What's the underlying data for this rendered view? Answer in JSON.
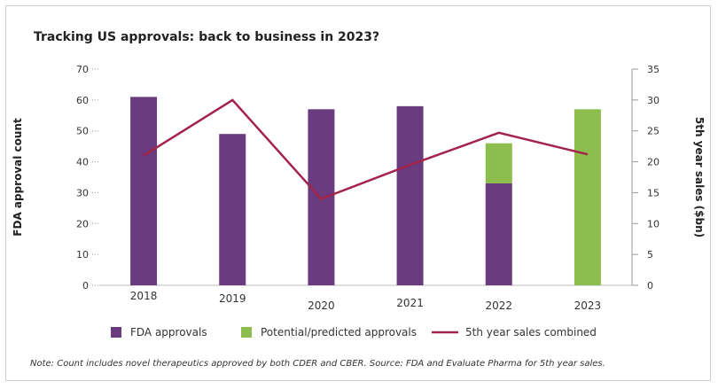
{
  "chart_data": {
    "type": "bar",
    "title": "Tracking US approvals: back to business in 2023?",
    "categories": [
      "2018",
      "2019",
      "2020",
      "2021",
      "2022",
      "2023"
    ],
    "ylabel": "FDA approval count",
    "y2label": "5th year sales ($bn)",
    "ylim": [
      0,
      70
    ],
    "y2lim": [
      0,
      35
    ],
    "yticks": [
      0,
      10,
      20,
      30,
      40,
      50,
      60,
      70
    ],
    "y2ticks": [
      0,
      5,
      10,
      15,
      20,
      25,
      30,
      35
    ],
    "stacked": true,
    "series": [
      {
        "name": "FDA approvals",
        "type": "bar",
        "axis": "left",
        "color": "#6a3b7e",
        "values": [
          61,
          49,
          57,
          58,
          33,
          0
        ]
      },
      {
        "name": "Potential/predicted approvals",
        "type": "bar",
        "axis": "left",
        "color": "#8dbd4f",
        "values": [
          0,
          0,
          0,
          0,
          13,
          57
        ]
      },
      {
        "name": "5th year sales combined",
        "type": "line",
        "axis": "right",
        "color": "#a3234a",
        "values": [
          21,
          30,
          14,
          19.5,
          24.7,
          21.2
        ]
      }
    ],
    "legend_position": "bottom",
    "grid": false
  },
  "note": "Note: Count includes novel therapeutics approved by both CDER and CBER. Source: FDA and Evaluate Pharma for 5th year sales."
}
